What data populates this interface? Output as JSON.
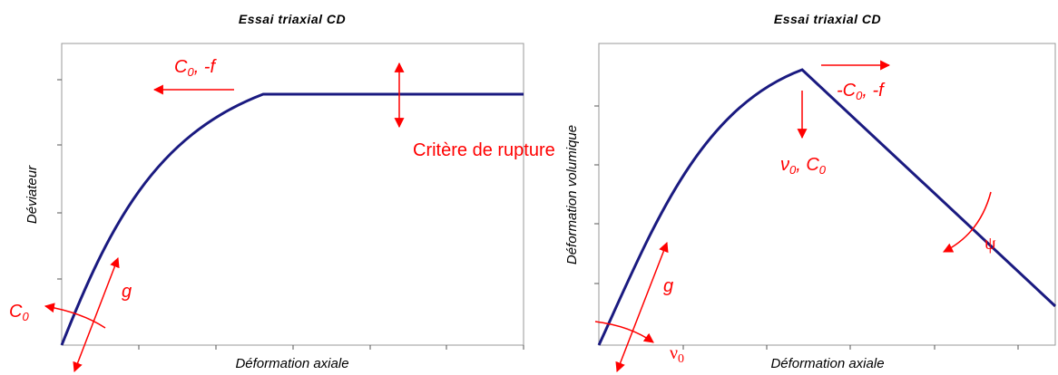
{
  "left": {
    "title": "Essai triaxial CD",
    "ylabel": "Déviateur",
    "xlabel": "Déformation axiale",
    "annotations": {
      "failure_shift": {
        "main": "C",
        "sub": "0",
        "rest": ", -f"
      },
      "criterion": "Critère de rupture",
      "slope": "g",
      "origin": {
        "main": "C",
        "sub": "0"
      }
    }
  },
  "right": {
    "title": "Essai triaxial CD",
    "ylabel": "Déformation volumique",
    "xlabel": "Déformation axiale",
    "annotations": {
      "peak_shift": {
        "main": "-C",
        "sub": "0",
        "rest": ", -f"
      },
      "peak_down": {
        "main": "ν",
        "sub": "0",
        "mid": ", C",
        "sub2": "0"
      },
      "slope": "g",
      "origin": {
        "main": "ν",
        "sub": "0"
      },
      "dilatancy": "ψ"
    }
  }
}
